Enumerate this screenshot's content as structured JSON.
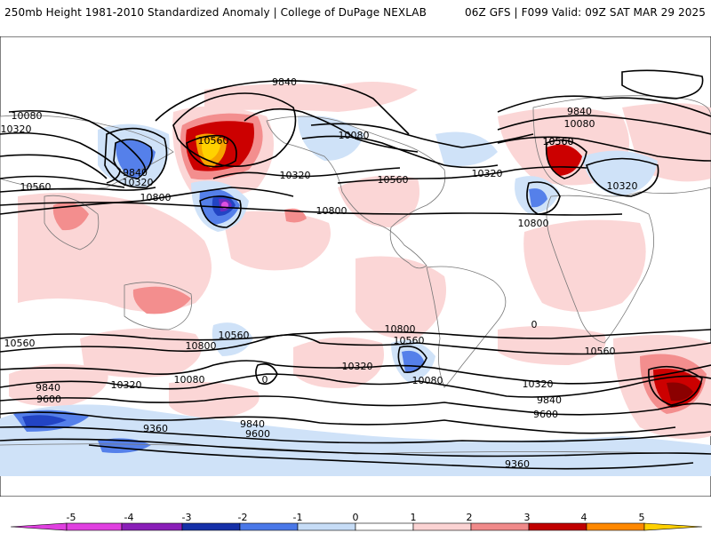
{
  "header": {
    "left_title": "250mb Height 1981-2010 Standardized Anomaly | College of DuPage NEXLAB",
    "right_title": "06Z GFS | F099 Valid: 09Z SAT MAR 29 2025"
  },
  "contour_labels": [
    {
      "id": "c1",
      "text": "9840"
    },
    {
      "id": "c2",
      "text": "10080"
    },
    {
      "id": "c3",
      "text": "10320"
    },
    {
      "id": "c4",
      "text": "10560"
    },
    {
      "id": "c5",
      "text": "9840"
    },
    {
      "id": "c6",
      "text": "10320"
    },
    {
      "id": "c7",
      "text": "10560"
    },
    {
      "id": "c8",
      "text": "10800"
    },
    {
      "id": "c9",
      "text": "10560"
    },
    {
      "id": "c10",
      "text": "10080"
    },
    {
      "id": "c11",
      "text": "10320"
    },
    {
      "id": "c12",
      "text": "10560"
    },
    {
      "id": "c13",
      "text": "10800"
    },
    {
      "id": "c14",
      "text": "9840"
    },
    {
      "id": "c15",
      "text": "10080"
    },
    {
      "id": "c16",
      "text": "10560"
    },
    {
      "id": "c17",
      "text": "10320"
    },
    {
      "id": "c18",
      "text": "10320"
    },
    {
      "id": "c19",
      "text": "10800"
    },
    {
      "id": "c20",
      "text": "10560"
    },
    {
      "id": "c21",
      "text": "10800"
    },
    {
      "id": "c22",
      "text": "10560"
    },
    {
      "id": "c23",
      "text": "10800"
    },
    {
      "id": "c24",
      "text": "10560"
    },
    {
      "id": "c25",
      "text": "10320"
    },
    {
      "id": "c26",
      "text": "10080"
    },
    {
      "id": "c27",
      "text": "10080"
    },
    {
      "id": "c28",
      "text": "10320"
    },
    {
      "id": "c29",
      "text": "9840"
    },
    {
      "id": "c30",
      "text": "9600"
    },
    {
      "id": "c31",
      "text": "9360"
    },
    {
      "id": "c32",
      "text": "9840"
    },
    {
      "id": "c33",
      "text": "9600"
    },
    {
      "id": "c34",
      "text": "10560"
    },
    {
      "id": "c35",
      "text": "10320"
    },
    {
      "id": "c36",
      "text": "9840"
    },
    {
      "id": "c37",
      "text": "9600"
    },
    {
      "id": "c38",
      "text": "9360"
    },
    {
      "id": "c39",
      "text": "0"
    },
    {
      "id": "c40",
      "text": "0"
    }
  ],
  "colorbar": {
    "ticks": [
      "-5",
      "-4",
      "-3",
      "-2",
      "-1",
      "0",
      "1",
      "2",
      "3",
      "4",
      "5"
    ],
    "colors": {
      "m5": "#e040e0",
      "m4": "#8a1fb8",
      "m3": "#1630a8",
      "m2": "#4a78e8",
      "m1": "#c6dcf6",
      "z": "#ffffff",
      "p1": "#fbd3d3",
      "p2": "#f08a8a",
      "p3": "#c00000",
      "p4": "#ff8800",
      "p5": "#ffd000"
    }
  },
  "anomaly_colors": {
    "pos1": "#fbd6d6",
    "pos2": "#f38e8e",
    "pos3": "#cc0000",
    "pos4": "#f6a300",
    "pos5": "#ffd200",
    "neg1": "#cfe2f8",
    "neg2": "#5580ea",
    "neg3": "#2244c4",
    "neg4": "#6a2bc0",
    "neg5": "#e050e0"
  }
}
